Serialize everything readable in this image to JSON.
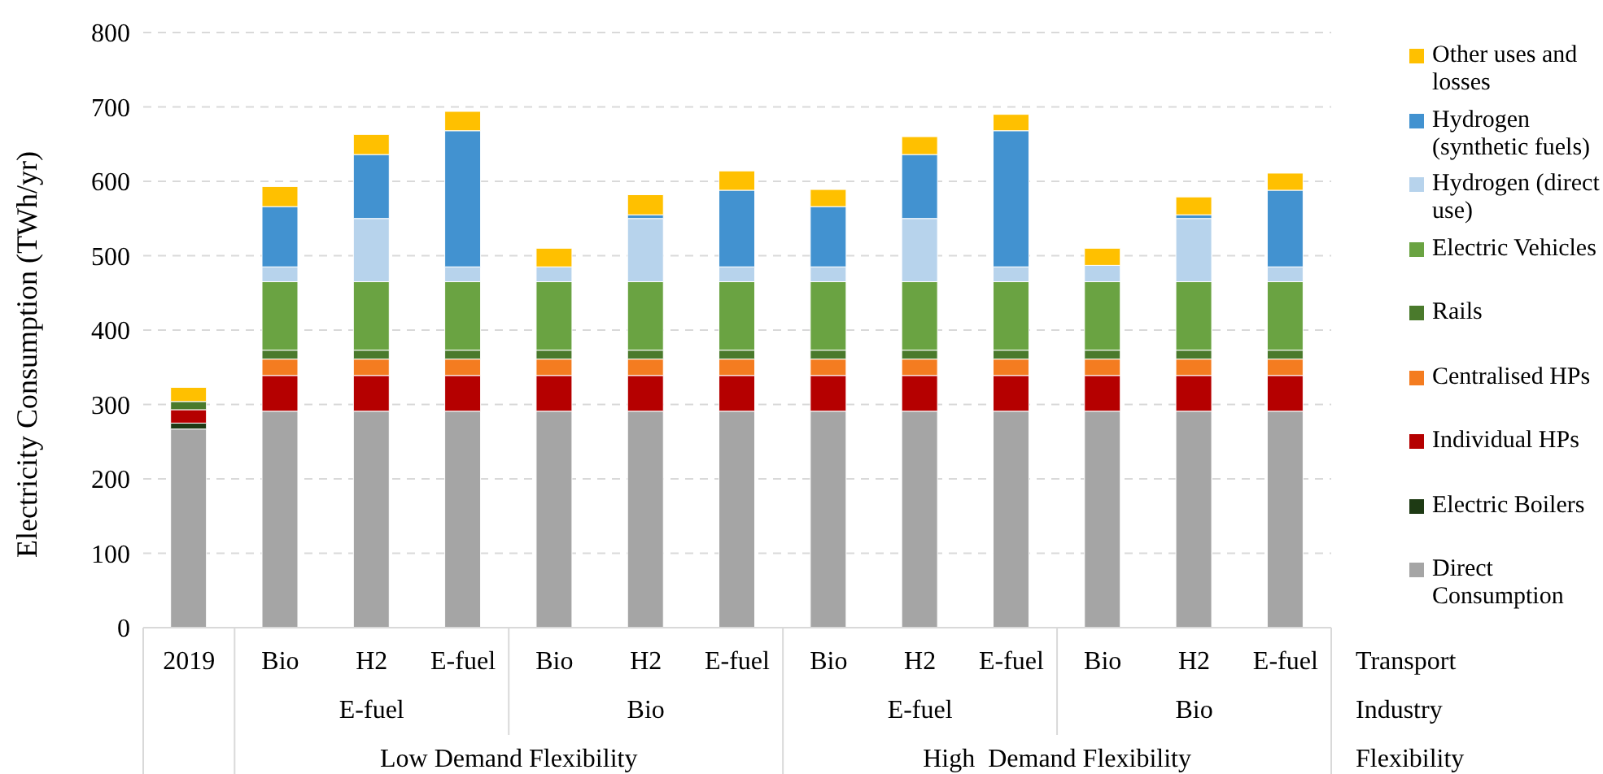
{
  "chart_data": {
    "type": "bar",
    "stacked": true,
    "ylabel": "Electricity Consumption (TWh/yr)",
    "categories": [
      "2019",
      "Bio",
      "H2",
      "E-fuel",
      "Bio",
      "H2",
      "E-fuel",
      "Bio",
      "H2",
      "E-fuel",
      "Bio",
      "H2",
      "E-fuel"
    ],
    "series": [
      {
        "name": "Direct Consumption",
        "color": "#a5a5a5",
        "values": [
          267,
          291,
          291,
          291,
          291,
          291,
          291,
          291,
          291,
          291,
          291,
          291,
          291
        ]
      },
      {
        "name": "Electric Boilers",
        "color": "#1e3a14",
        "values": [
          8,
          0,
          0,
          0,
          0,
          0,
          0,
          0,
          0,
          0,
          0,
          0,
          0
        ]
      },
      {
        "name": "Individual HPs",
        "color": "#b50000",
        "values": [
          18,
          48,
          48,
          48,
          48,
          48,
          48,
          48,
          48,
          48,
          48,
          48,
          48
        ]
      },
      {
        "name": "Centralised HPs",
        "color": "#f47c20",
        "values": [
          0,
          22,
          22,
          22,
          22,
          22,
          22,
          22,
          22,
          22,
          22,
          22,
          22
        ]
      },
      {
        "name": "Rails",
        "color": "#4a7a2c",
        "values": [
          11,
          12,
          12,
          12,
          12,
          12,
          12,
          12,
          12,
          12,
          12,
          12,
          12
        ]
      },
      {
        "name": "Electric Vehicles",
        "color": "#6aa342",
        "values": [
          0,
          92,
          92,
          92,
          92,
          92,
          92,
          92,
          92,
          92,
          92,
          92,
          92
        ]
      },
      {
        "name": "Hydrogen (direct use)",
        "color": "#b7d3ec",
        "values": [
          0,
          20,
          85,
          20,
          20,
          85,
          20,
          20,
          85,
          20,
          22,
          85,
          20
        ]
      },
      {
        "name": "Hydrogen (synthetic fuels)",
        "color": "#4292d0",
        "values": [
          0,
          81,
          86,
          183,
          0,
          5,
          103,
          81,
          86,
          183,
          0,
          5,
          103
        ]
      },
      {
        "name": "Other uses and losses",
        "color": "#ffc000",
        "values": [
          19,
          27,
          27,
          26,
          25,
          27,
          26,
          23,
          24,
          22,
          23,
          24,
          23
        ]
      }
    ],
    "ylim": [
      0,
      800
    ],
    "yticks": [
      0,
      100,
      200,
      300,
      400,
      500,
      600,
      700,
      800
    ],
    "grid": "y",
    "legend": "right",
    "annotations": [
      "Transport",
      "Industry",
      "Flexibility",
      "E-fuel",
      "Bio",
      "E-fuel",
      "Bio",
      "Low Demand Flexibility",
      "High  Demand Flexibility"
    ]
  }
}
